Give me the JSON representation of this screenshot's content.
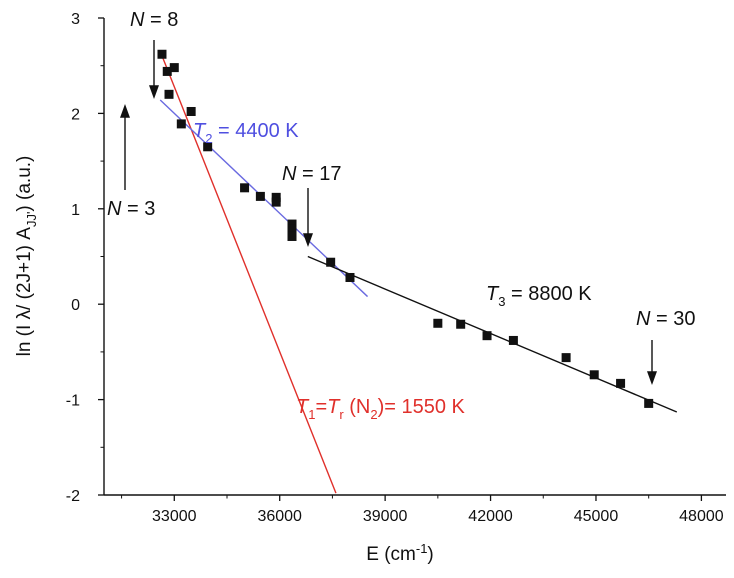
{
  "chart_data": {
    "type": "scatter",
    "title": "",
    "xlabel": "E (cm",
    "xlabel_sup": "-1",
    "xlabel_end": ")",
    "ylabel": "ln (I λ/ (2J+1) A",
    "ylabel_sub": "JJ'",
    "ylabel_end": ")  (a.u.)",
    "xlim": [
      31000,
      48700
    ],
    "ylim": [
      -2,
      3
    ],
    "xticks": [
      33000,
      36000,
      39000,
      42000,
      45000,
      48000
    ],
    "yticks": [
      -2,
      -1,
      0,
      1,
      2,
      3
    ],
    "grid": false,
    "points": [
      {
        "x": 32650,
        "y": 2.62
      },
      {
        "x": 32800,
        "y": 2.44
      },
      {
        "x": 33000,
        "y": 2.48
      },
      {
        "x": 32850,
        "y": 2.2
      },
      {
        "x": 33480,
        "y": 2.02
      },
      {
        "x": 33200,
        "y": 1.89
      },
      {
        "x": 33950,
        "y": 1.65
      },
      {
        "x": 35000,
        "y": 1.22
      },
      {
        "x": 35450,
        "y": 1.13
      },
      {
        "x": 35900,
        "y": 1.12
      },
      {
        "x": 35900,
        "y": 1.07
      },
      {
        "x": 36350,
        "y": 0.84
      },
      {
        "x": 36350,
        "y": 0.79
      },
      {
        "x": 36350,
        "y": 0.71
      },
      {
        "x": 37450,
        "y": 0.44
      },
      {
        "x": 38000,
        "y": 0.28
      },
      {
        "x": 40500,
        "y": -0.2
      },
      {
        "x": 41150,
        "y": -0.21
      },
      {
        "x": 41900,
        "y": -0.33
      },
      {
        "x": 42650,
        "y": -0.38
      },
      {
        "x": 44150,
        "y": -0.56
      },
      {
        "x": 44950,
        "y": -0.74
      },
      {
        "x": 45700,
        "y": -0.83
      },
      {
        "x": 46500,
        "y": -1.04
      }
    ],
    "fits": [
      {
        "name": "T1",
        "color": "#e0302b",
        "x": [
          32600,
          37600
        ],
        "y": [
          2.65,
          -1.98
        ]
      },
      {
        "name": "T2",
        "color": "#6a6ae0",
        "x": [
          32600,
          38500
        ],
        "y": [
          2.14,
          0.08
        ]
      },
      {
        "name": "T3",
        "color": "#111111",
        "x": [
          36800,
          47300
        ],
        "y": [
          0.5,
          -1.13
        ]
      }
    ],
    "annotations": {
      "n8": {
        "prefix": "N",
        "text": " = 8"
      },
      "n3": {
        "prefix": "N",
        "text": " = 3"
      },
      "n17": {
        "prefix": "N",
        "text": " = 17"
      },
      "n30": {
        "prefix": "N",
        "text": " = 30"
      },
      "t2": {
        "var": "T",
        "sub": "2",
        "text": " = 4400 K",
        "color": "#4f4fe0"
      },
      "t3": {
        "var": "T",
        "sub": "3",
        "text": " = 8800 K",
        "color": "#111111"
      },
      "t1": {
        "var1": "T",
        "sub1": "1",
        "eq": "=",
        "var2": "T",
        "sub2": "r",
        "text": " (N",
        "sub3": "2",
        "text2": ")= 1550 K",
        "color": "#e0302b"
      }
    }
  }
}
